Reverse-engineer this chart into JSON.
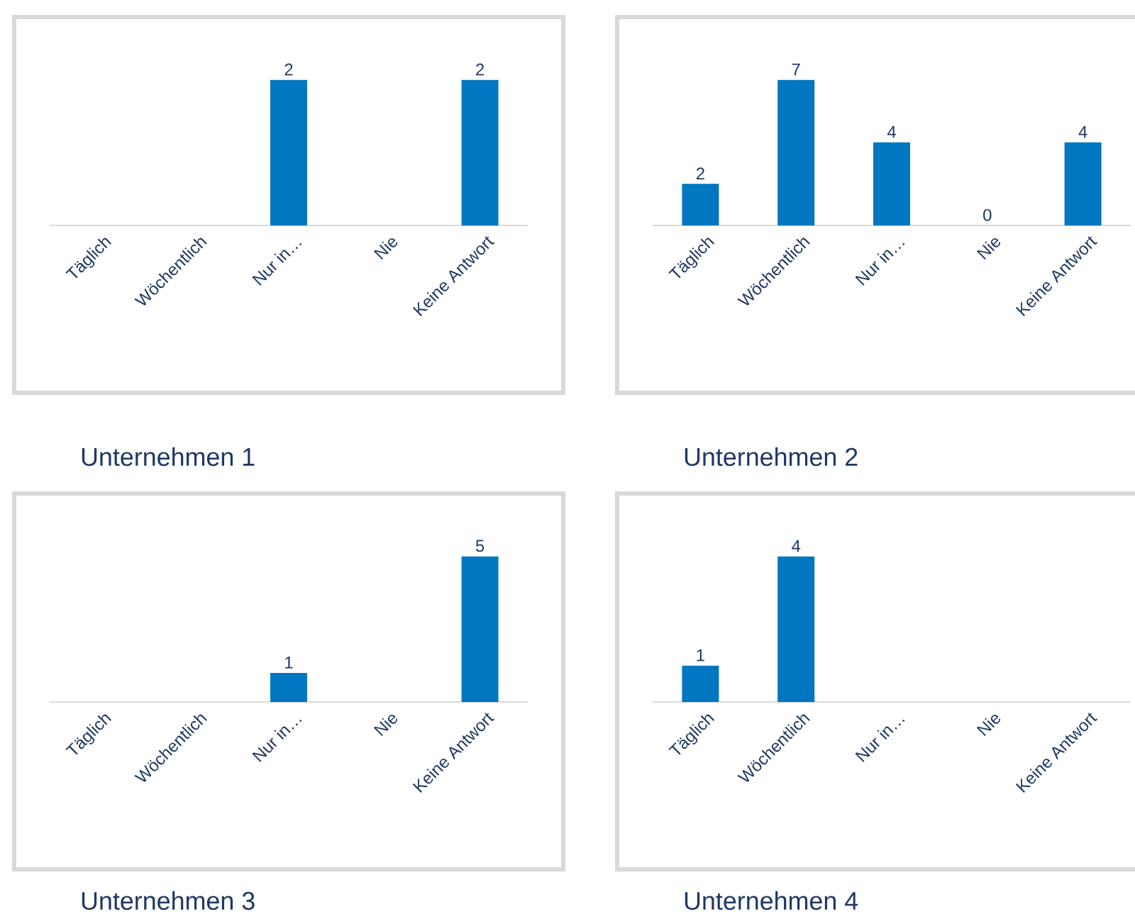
{
  "chart_data": [
    {
      "type": "bar",
      "title": "Unternehmen 1",
      "categories": [
        "Täglich",
        "Wöchentlich",
        "Nur in…",
        "Nie",
        "Keine Antwort"
      ],
      "values": [
        null,
        null,
        2,
        null,
        2
      ],
      "color": "#0077c0",
      "data_labels": true
    },
    {
      "type": "bar",
      "title": "Unternehmen 2",
      "categories": [
        "Täglich",
        "Wöchentlich",
        "Nur in…",
        "Nie",
        "Keine Antwort"
      ],
      "values": [
        2,
        7,
        4,
        0,
        4
      ],
      "color": "#0077c0",
      "data_labels": true
    },
    {
      "type": "bar",
      "title": "Unternehmen 3",
      "categories": [
        "Täglich",
        "Wöchentlich",
        "Nur in…",
        "Nie",
        "Keine Antwort"
      ],
      "values": [
        null,
        null,
        1,
        null,
        5
      ],
      "color": "#0077c0",
      "data_labels": true
    },
    {
      "type": "bar",
      "title": "Unternehmen 4",
      "categories": [
        "Täglich",
        "Wöchentlich",
        "Nur in…",
        "Nie",
        "Keine Antwort"
      ],
      "values": [
        1,
        4,
        null,
        null,
        null
      ],
      "color": "#0077c0",
      "data_labels": true
    }
  ]
}
